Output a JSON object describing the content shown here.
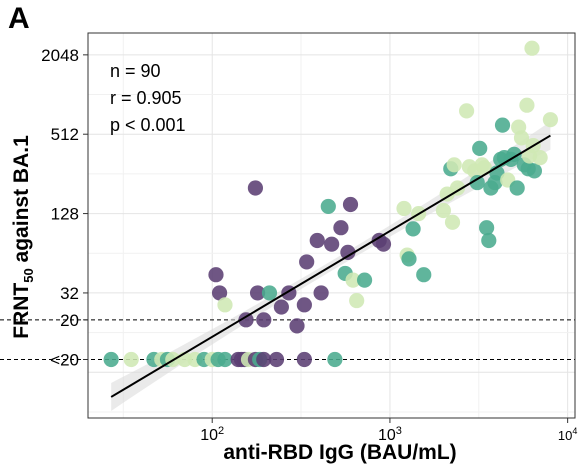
{
  "panel_label": "A",
  "chart_data": {
    "type": "scatter",
    "xlabel": "anti-RBD IgG (BAU/mL)",
    "ylabel_main": "FRNT",
    "ylabel_sub": "50",
    "ylabel_rest": " against BA.1",
    "x_scale": "log10",
    "y_scale": "log2",
    "xlim": [
      20,
      11000
    ],
    "ylim": [
      3.6,
      3000
    ],
    "x_ticks": [
      {
        "value": 100,
        "base": "10",
        "exp": "2"
      },
      {
        "value": 1000,
        "base": "10",
        "exp": "3"
      },
      {
        "value": 10000,
        "base": "10",
        "exp": "4"
      }
    ],
    "y_ticks": [
      {
        "value": 2048,
        "label": "2048"
      },
      {
        "value": 512,
        "label": "512"
      },
      {
        "value": 128,
        "label": "128"
      },
      {
        "value": 32,
        "label": "32"
      },
      {
        "value": 20,
        "label": "20"
      },
      {
        "value": 10,
        "label": "<20"
      }
    ],
    "reference_lines": [
      20,
      10
    ],
    "grid": true,
    "annotations": [
      "n = 90",
      "r = 0.905",
      "p < 0.001"
    ],
    "regression": {
      "x_start": 27,
      "y_start": 5.2,
      "x_end": 8000,
      "y_end": 500
    },
    "colors": {
      "dark_purple": "#5b3f73",
      "teal": "#4aab8e",
      "light_green": "#cfe8b4",
      "line": "#000000",
      "band": "#d9d9d9"
    },
    "points": [
      {
        "x": 27,
        "y": 10,
        "c": "teal"
      },
      {
        "x": 35,
        "y": 10,
        "c": "light_green"
      },
      {
        "x": 47,
        "y": 10,
        "c": "teal"
      },
      {
        "x": 52,
        "y": 10,
        "c": "light_green"
      },
      {
        "x": 56,
        "y": 10,
        "c": "teal"
      },
      {
        "x": 60,
        "y": 10,
        "c": "light_green"
      },
      {
        "x": 70,
        "y": 10,
        "c": "light_green"
      },
      {
        "x": 80,
        "y": 10,
        "c": "light_green"
      },
      {
        "x": 90,
        "y": 10,
        "c": "teal"
      },
      {
        "x": 100,
        "y": 10,
        "c": "light_green"
      },
      {
        "x": 108,
        "y": 10,
        "c": "teal"
      },
      {
        "x": 118,
        "y": 10,
        "c": "teal"
      },
      {
        "x": 140,
        "y": 10,
        "c": "dark_purple"
      },
      {
        "x": 146,
        "y": 10,
        "c": "dark_purple"
      },
      {
        "x": 152,
        "y": 10,
        "c": "dark_purple"
      },
      {
        "x": 160,
        "y": 10,
        "c": "light_green"
      },
      {
        "x": 175,
        "y": 10,
        "c": "dark_purple"
      },
      {
        "x": 185,
        "y": 10,
        "c": "teal"
      },
      {
        "x": 195,
        "y": 10,
        "c": "dark_purple"
      },
      {
        "x": 230,
        "y": 10,
        "c": "dark_purple"
      },
      {
        "x": 330,
        "y": 10,
        "c": "dark_purple"
      },
      {
        "x": 490,
        "y": 10,
        "c": "teal"
      },
      {
        "x": 105,
        "y": 44,
        "c": "dark_purple"
      },
      {
        "x": 110,
        "y": 32,
        "c": "dark_purple"
      },
      {
        "x": 118,
        "y": 26,
        "c": "light_green"
      },
      {
        "x": 180,
        "y": 32,
        "c": "dark_purple"
      },
      {
        "x": 175,
        "y": 200,
        "c": "dark_purple"
      },
      {
        "x": 155,
        "y": 20,
        "c": "dark_purple"
      },
      {
        "x": 195,
        "y": 20,
        "c": "dark_purple"
      },
      {
        "x": 210,
        "y": 32,
        "c": "teal"
      },
      {
        "x": 245,
        "y": 25,
        "c": "dark_purple"
      },
      {
        "x": 270,
        "y": 32,
        "c": "dark_purple"
      },
      {
        "x": 300,
        "y": 18,
        "c": "dark_purple"
      },
      {
        "x": 330,
        "y": 26,
        "c": "dark_purple"
      },
      {
        "x": 340,
        "y": 55,
        "c": "dark_purple"
      },
      {
        "x": 390,
        "y": 80,
        "c": "dark_purple"
      },
      {
        "x": 410,
        "y": 32,
        "c": "dark_purple"
      },
      {
        "x": 450,
        "y": 145,
        "c": "teal"
      },
      {
        "x": 470,
        "y": 75,
        "c": "dark_purple"
      },
      {
        "x": 530,
        "y": 100,
        "c": "dark_purple"
      },
      {
        "x": 560,
        "y": 45,
        "c": "teal"
      },
      {
        "x": 580,
        "y": 65,
        "c": "dark_purple"
      },
      {
        "x": 600,
        "y": 150,
        "c": "dark_purple"
      },
      {
        "x": 620,
        "y": 40,
        "c": "light_green"
      },
      {
        "x": 650,
        "y": 28,
        "c": "light_green"
      },
      {
        "x": 720,
        "y": 40,
        "c": "teal"
      },
      {
        "x": 870,
        "y": 80,
        "c": "dark_purple"
      },
      {
        "x": 920,
        "y": 75,
        "c": "dark_purple"
      },
      {
        "x": 1200,
        "y": 140,
        "c": "light_green"
      },
      {
        "x": 1250,
        "y": 62,
        "c": "light_green"
      },
      {
        "x": 1280,
        "y": 58,
        "c": "teal"
      },
      {
        "x": 1350,
        "y": 98,
        "c": "teal"
      },
      {
        "x": 1450,
        "y": 128,
        "c": "light_green"
      },
      {
        "x": 1550,
        "y": 44,
        "c": "teal"
      },
      {
        "x": 2000,
        "y": 135,
        "c": "light_green"
      },
      {
        "x": 2100,
        "y": 180,
        "c": "light_green"
      },
      {
        "x": 2200,
        "y": 280,
        "c": "teal"
      },
      {
        "x": 2250,
        "y": 110,
        "c": "light_green"
      },
      {
        "x": 2300,
        "y": 300,
        "c": "light_green"
      },
      {
        "x": 2400,
        "y": 200,
        "c": "light_green"
      },
      {
        "x": 2700,
        "y": 770,
        "c": "light_green"
      },
      {
        "x": 2800,
        "y": 290,
        "c": "light_green"
      },
      {
        "x": 3000,
        "y": 270,
        "c": "light_green"
      },
      {
        "x": 3100,
        "y": 220,
        "c": "teal"
      },
      {
        "x": 3200,
        "y": 400,
        "c": "teal"
      },
      {
        "x": 3300,
        "y": 300,
        "c": "light_green"
      },
      {
        "x": 3400,
        "y": 285,
        "c": "light_green"
      },
      {
        "x": 3500,
        "y": 100,
        "c": "teal"
      },
      {
        "x": 3600,
        "y": 80,
        "c": "teal"
      },
      {
        "x": 3700,
        "y": 200,
        "c": "teal"
      },
      {
        "x": 3900,
        "y": 220,
        "c": "teal"
      },
      {
        "x": 4000,
        "y": 260,
        "c": "teal"
      },
      {
        "x": 4200,
        "y": 330,
        "c": "teal"
      },
      {
        "x": 4300,
        "y": 600,
        "c": "teal"
      },
      {
        "x": 4400,
        "y": 340,
        "c": "teal"
      },
      {
        "x": 4600,
        "y": 230,
        "c": "light_green"
      },
      {
        "x": 4800,
        "y": 330,
        "c": "teal"
      },
      {
        "x": 5000,
        "y": 360,
        "c": "teal"
      },
      {
        "x": 5200,
        "y": 200,
        "c": "teal"
      },
      {
        "x": 5300,
        "y": 580,
        "c": "light_green"
      },
      {
        "x": 5500,
        "y": 480,
        "c": "light_green"
      },
      {
        "x": 5700,
        "y": 300,
        "c": "teal"
      },
      {
        "x": 5900,
        "y": 850,
        "c": "light_green"
      },
      {
        "x": 6000,
        "y": 280,
        "c": "teal"
      },
      {
        "x": 6100,
        "y": 350,
        "c": "light_green"
      },
      {
        "x": 6300,
        "y": 2300,
        "c": "light_green"
      },
      {
        "x": 6400,
        "y": 420,
        "c": "light_green"
      },
      {
        "x": 6500,
        "y": 270,
        "c": "teal"
      },
      {
        "x": 7000,
        "y": 340,
        "c": "light_green"
      },
      {
        "x": 8000,
        "y": 660,
        "c": "light_green"
      }
    ]
  }
}
